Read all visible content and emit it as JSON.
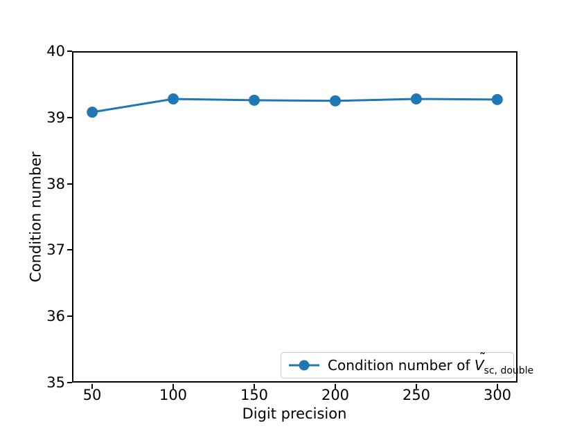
{
  "figure": {
    "background": "#ffffff",
    "text_color": "#000000"
  },
  "chart_data": {
    "type": "line",
    "title": "",
    "xlabel": "Digit precision",
    "ylabel": "Condition number",
    "x": [
      50,
      100,
      150,
      200,
      250,
      300
    ],
    "series": [
      {
        "name": "Condition number of Ṽ_sc, double",
        "values": [
          39.08,
          39.28,
          39.26,
          39.25,
          39.28,
          39.27
        ]
      }
    ],
    "xlim": [
      37.5,
      312.5
    ],
    "ylim": [
      35,
      40
    ],
    "xticks": [
      "50",
      "100",
      "150",
      "200",
      "250",
      "300"
    ],
    "yticks": [
      "40",
      "39",
      "38",
      "37",
      "36",
      "35"
    ],
    "grid": false,
    "line_color": "#1f77b4",
    "marker": "circle",
    "marker_radius": 8,
    "line_width": 3,
    "legend": {
      "position": "lower right",
      "label_prefix": "Condition number of ",
      "var_letter": "V",
      "tilde": "˜",
      "subscript": "sc, double"
    }
  }
}
